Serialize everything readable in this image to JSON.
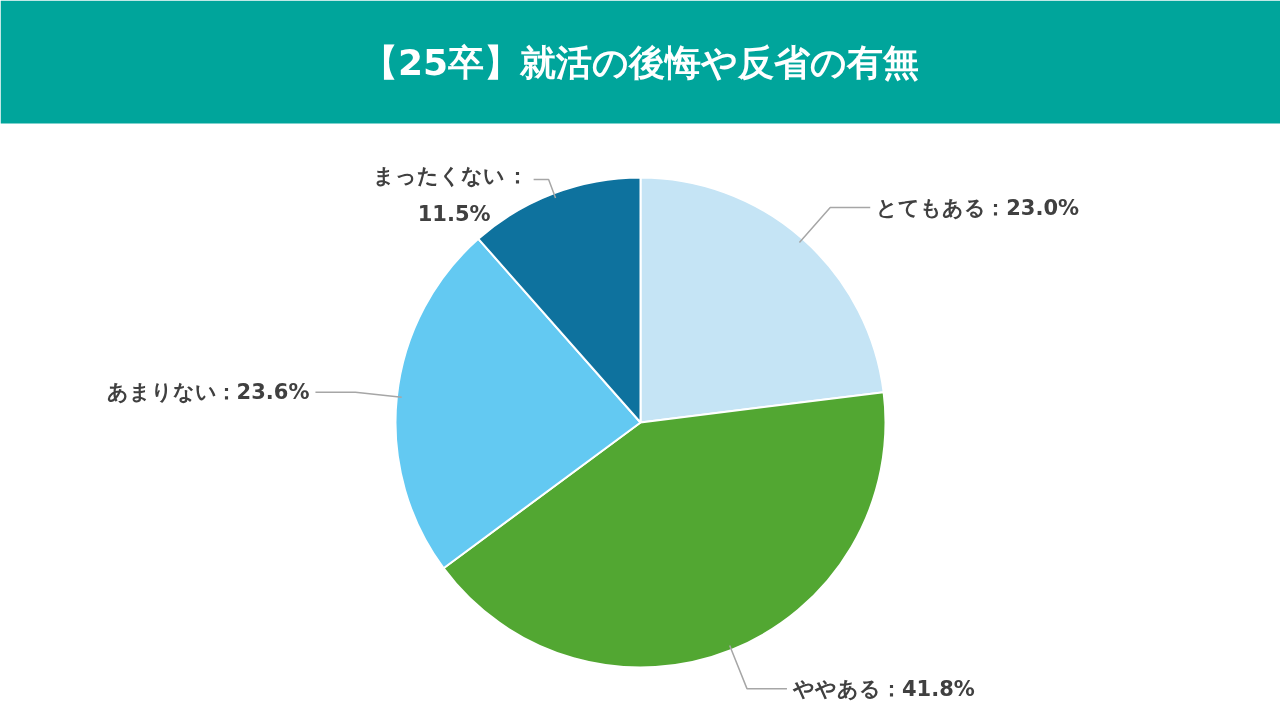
{
  "chart_data": {
    "type": "pie",
    "title": "【25卒】就活の後悔や反省の有無",
    "categories": [
      "とてもある",
      "ややある",
      "あまりない",
      "まったくない"
    ],
    "values": [
      23.0,
      41.8,
      23.6,
      11.5
    ],
    "value_labels": [
      "：23.0%",
      "：41.8%",
      "：23.6%",
      "：\n11.5%"
    ],
    "colors": [
      "#c5e4f5",
      "#52a732",
      "#63c9f2",
      "#0e729e"
    ]
  }
}
